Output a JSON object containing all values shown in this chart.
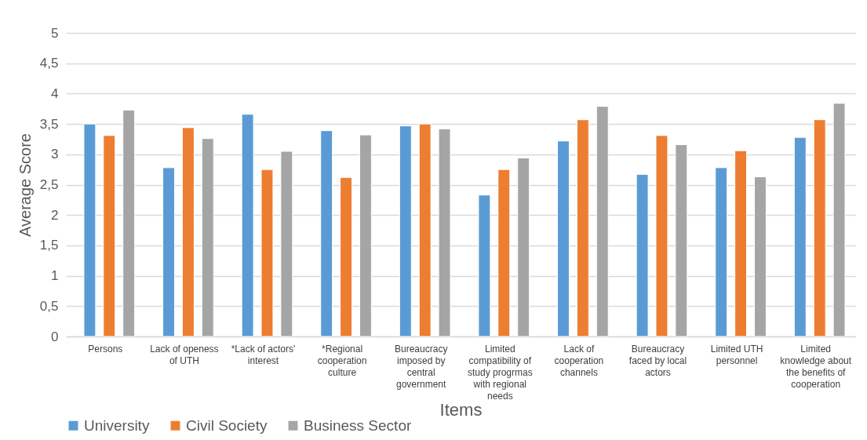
{
  "chart_data": {
    "type": "bar",
    "xlabel": "Items",
    "ylabel": "Average Score",
    "categories": [
      "Persons",
      "Lack of openess of UTH",
      "*Lack of actors' interest",
      "*Regional cooperation culture",
      "Bureaucracy imposed by central government",
      "Limited compatibility of study progrmas with regional needs",
      "Lack of cooperation channels",
      "Bureaucracy faced by local actors",
      "Limited UTH personnel",
      "Limited knowledge about the benefits of cooperation"
    ],
    "series": [
      {
        "name": "University",
        "color": "#5b9bd5",
        "values": [
          3.5,
          2.78,
          3.66,
          3.39,
          3.47,
          2.33,
          3.22,
          2.67,
          2.78,
          3.28
        ]
      },
      {
        "name": "Civil Society",
        "color": "#ed7d31",
        "values": [
          3.31,
          3.44,
          2.75,
          2.62,
          3.5,
          2.75,
          3.57,
          3.31,
          3.06,
          3.57
        ]
      },
      {
        "name": "Business Sector",
        "color": "#a5a5a5",
        "values": [
          3.73,
          3.26,
          3.05,
          3.32,
          3.42,
          2.94,
          3.79,
          3.16,
          2.63,
          3.84
        ]
      }
    ],
    "ylim": [
      0,
      5
    ],
    "yticks": [
      0,
      {
        "value": 0.5,
        "label": "0,5"
      },
      1,
      {
        "value": 1.5,
        "label": "1,5"
      },
      2,
      {
        "value": 2.5,
        "label": "2,5"
      },
      3,
      {
        "value": 3.5,
        "label": "3,5"
      },
      4,
      {
        "value": 4.5,
        "label": "4,5"
      },
      5
    ],
    "grid": "y",
    "legend": "bottom"
  }
}
